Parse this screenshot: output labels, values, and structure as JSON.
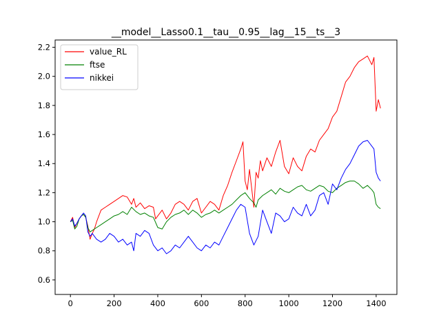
{
  "chart_data": {
    "type": "line",
    "title": "__model__Lasso0.1__tau__0.95__lag__15__ts__3",
    "xlabel": "",
    "ylabel": "",
    "xlim": [
      -70,
      1495
    ],
    "ylim": [
      0.5,
      2.25
    ],
    "x_ticks": [
      0,
      200,
      400,
      600,
      800,
      1000,
      1200,
      1400
    ],
    "x_tick_labels": [
      "0",
      "200",
      "400",
      "600",
      "800",
      "1000",
      "1200",
      "1400"
    ],
    "y_ticks": [
      0.6,
      0.8,
      1.0,
      1.2,
      1.4,
      1.6,
      1.8,
      2.0,
      2.2
    ],
    "y_tick_labels": [
      "0.6",
      "0.8",
      "1.0",
      "1.2",
      "1.4",
      "1.6",
      "1.8",
      "2.0",
      "2.2"
    ],
    "grid": false,
    "legend_position": "top-left",
    "series": [
      {
        "name": "value_RL",
        "color": "#ff0000",
        "x": [
          0,
          10,
          20,
          30,
          40,
          50,
          60,
          70,
          80,
          90,
          100,
          110,
          120,
          140,
          160,
          180,
          200,
          220,
          240,
          260,
          280,
          290,
          300,
          320,
          340,
          360,
          380,
          390,
          400,
          420,
          440,
          460,
          480,
          500,
          520,
          540,
          560,
          580,
          600,
          620,
          640,
          660,
          680,
          700,
          720,
          740,
          760,
          780,
          790,
          800,
          810,
          820,
          840,
          850,
          860,
          870,
          880,
          900,
          920,
          940,
          960,
          980,
          1000,
          1020,
          1040,
          1060,
          1080,
          1100,
          1120,
          1140,
          1160,
          1180,
          1200,
          1220,
          1240,
          1260,
          1280,
          1300,
          1320,
          1340,
          1360,
          1380,
          1390,
          1400,
          1410,
          1420
        ],
        "y": [
          1.0,
          1.03,
          0.96,
          0.99,
          1.02,
          1.04,
          1.05,
          1.03,
          0.97,
          0.88,
          0.92,
          0.95,
          1.0,
          1.08,
          1.1,
          1.12,
          1.14,
          1.16,
          1.18,
          1.17,
          1.12,
          1.16,
          1.1,
          1.13,
          1.09,
          1.11,
          1.1,
          1.02,
          1.04,
          1.08,
          1.02,
          1.06,
          1.12,
          1.14,
          1.12,
          1.08,
          1.14,
          1.16,
          1.06,
          1.1,
          1.14,
          1.12,
          1.08,
          1.18,
          1.25,
          1.34,
          1.42,
          1.5,
          1.55,
          1.28,
          1.22,
          1.36,
          1.1,
          1.34,
          1.3,
          1.42,
          1.35,
          1.44,
          1.38,
          1.48,
          1.56,
          1.38,
          1.33,
          1.44,
          1.38,
          1.35,
          1.45,
          1.5,
          1.48,
          1.56,
          1.6,
          1.64,
          1.72,
          1.76,
          1.86,
          1.96,
          2.0,
          2.06,
          2.1,
          2.12,
          2.14,
          2.08,
          2.13,
          1.76,
          1.84,
          1.78
        ]
      },
      {
        "name": "ftse",
        "color": "#008000",
        "x": [
          0,
          10,
          20,
          30,
          40,
          50,
          60,
          70,
          80,
          90,
          100,
          110,
          120,
          140,
          160,
          180,
          200,
          220,
          240,
          260,
          280,
          300,
          320,
          340,
          360,
          380,
          400,
          420,
          440,
          460,
          480,
          500,
          520,
          540,
          560,
          580,
          600,
          620,
          640,
          660,
          680,
          700,
          720,
          740,
          760,
          780,
          800,
          820,
          840,
          850,
          860,
          880,
          900,
          920,
          940,
          960,
          980,
          1000,
          1020,
          1040,
          1060,
          1080,
          1100,
          1120,
          1140,
          1160,
          1180,
          1200,
          1220,
          1240,
          1260,
          1280,
          1300,
          1320,
          1340,
          1360,
          1380,
          1390,
          1400,
          1410,
          1420
        ],
        "y": [
          1.0,
          1.01,
          0.95,
          0.97,
          1.02,
          1.04,
          1.05,
          1.03,
          0.96,
          0.93,
          0.94,
          0.95,
          0.96,
          0.98,
          1.0,
          1.02,
          1.04,
          1.05,
          1.07,
          1.05,
          1.1,
          1.07,
          1.05,
          1.06,
          1.04,
          1.03,
          0.96,
          0.95,
          1.0,
          1.03,
          1.05,
          1.06,
          1.08,
          1.05,
          1.08,
          1.06,
          1.03,
          1.05,
          1.06,
          1.08,
          1.06,
          1.08,
          1.1,
          1.12,
          1.15,
          1.18,
          1.2,
          1.16,
          1.13,
          1.1,
          1.15,
          1.18,
          1.2,
          1.22,
          1.19,
          1.23,
          1.21,
          1.2,
          1.22,
          1.24,
          1.25,
          1.22,
          1.21,
          1.23,
          1.25,
          1.24,
          1.21,
          1.2,
          1.23,
          1.25,
          1.27,
          1.28,
          1.28,
          1.26,
          1.23,
          1.25,
          1.22,
          1.2,
          1.12,
          1.1,
          1.09
        ]
      },
      {
        "name": "nikkei",
        "color": "#0000ff",
        "x": [
          0,
          10,
          20,
          30,
          40,
          50,
          60,
          70,
          80,
          90,
          100,
          110,
          120,
          140,
          160,
          180,
          200,
          220,
          240,
          260,
          280,
          290,
          300,
          320,
          340,
          360,
          380,
          400,
          420,
          440,
          460,
          480,
          500,
          520,
          540,
          560,
          580,
          600,
          620,
          640,
          660,
          680,
          700,
          720,
          740,
          760,
          780,
          800,
          820,
          840,
          860,
          880,
          900,
          920,
          940,
          960,
          980,
          1000,
          1020,
          1040,
          1060,
          1080,
          1100,
          1120,
          1140,
          1160,
          1180,
          1200,
          1220,
          1240,
          1260,
          1280,
          1300,
          1320,
          1340,
          1360,
          1380,
          1390,
          1400,
          1410,
          1420
        ],
        "y": [
          1.0,
          1.02,
          0.97,
          0.99,
          1.02,
          1.04,
          1.06,
          1.04,
          0.93,
          0.9,
          0.92,
          0.9,
          0.88,
          0.86,
          0.88,
          0.92,
          0.9,
          0.86,
          0.88,
          0.84,
          0.86,
          0.8,
          0.92,
          0.9,
          0.94,
          0.92,
          0.84,
          0.8,
          0.82,
          0.78,
          0.8,
          0.84,
          0.82,
          0.86,
          0.9,
          0.86,
          0.82,
          0.8,
          0.84,
          0.82,
          0.86,
          0.84,
          0.9,
          0.96,
          1.02,
          1.08,
          1.12,
          1.1,
          0.92,
          0.84,
          0.9,
          1.08,
          1.0,
          0.92,
          1.06,
          1.04,
          1.0,
          1.02,
          1.1,
          1.06,
          1.04,
          1.12,
          1.04,
          1.08,
          1.18,
          1.2,
          1.12,
          1.26,
          1.22,
          1.3,
          1.36,
          1.4,
          1.46,
          1.52,
          1.55,
          1.56,
          1.52,
          1.5,
          1.34,
          1.3,
          1.28
        ]
      }
    ]
  }
}
